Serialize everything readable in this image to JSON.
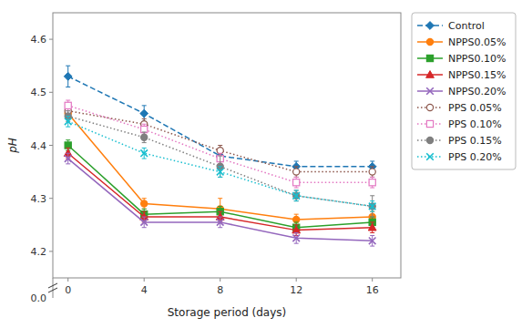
{
  "chart_data": {
    "type": "line",
    "x": [
      0,
      4,
      8,
      12,
      16
    ],
    "xlim": [
      -0.8,
      17.5
    ],
    "xticks": [
      0,
      4,
      8,
      12,
      16
    ],
    "ylim": [
      4.15,
      4.65
    ],
    "yticks": [
      4.2,
      4.3,
      4.4,
      4.5,
      4.6
    ],
    "xlabel": "Storage period (days)",
    "ylabel": "pH",
    "grid": false,
    "legend": "right",
    "annotations": [
      {
        "text": "0.0"
      }
    ],
    "series": [
      {
        "name": "Control",
        "marker": "diamond",
        "line_style": "dashed",
        "values": [
          4.53,
          4.46,
          4.38,
          4.36,
          4.36
        ],
        "errors": [
          0.02,
          0.015,
          0.01,
          0.01,
          0.01
        ]
      },
      {
        "name": "NPPS0.05%",
        "marker": "circle",
        "line_style": "solid",
        "values": [
          4.46,
          4.29,
          4.28,
          4.26,
          4.265
        ],
        "errors": [
          0.01,
          0.01,
          0.02,
          0.01,
          0.01
        ]
      },
      {
        "name": "NPPS0.10%",
        "marker": "square",
        "line_style": "solid",
        "values": [
          4.4,
          4.27,
          4.275,
          4.245,
          4.255
        ],
        "errors": [
          0.01,
          0.01,
          0.01,
          0.01,
          0.01
        ]
      },
      {
        "name": "NPPS0.15%",
        "marker": "triangle",
        "line_style": "solid",
        "values": [
          4.385,
          4.265,
          4.265,
          4.24,
          4.245
        ],
        "errors": [
          0.01,
          0.01,
          0.01,
          0.01,
          0.01
        ]
      },
      {
        "name": "NPPS0.20%",
        "marker": "x",
        "line_style": "solid",
        "values": [
          4.375,
          4.255,
          4.255,
          4.225,
          4.22
        ],
        "errors": [
          0.01,
          0.01,
          0.01,
          0.01,
          0.01
        ]
      },
      {
        "name": "PPS 0.05%",
        "marker": "circle-open",
        "line_style": "dotted",
        "values": [
          4.465,
          4.44,
          4.39,
          4.35,
          4.35
        ],
        "errors": [
          0.01,
          0.01,
          0.01,
          0.01,
          0.01
        ]
      },
      {
        "name": "PPS 0.10%",
        "marker": "square-open",
        "line_style": "dotted",
        "values": [
          4.475,
          4.43,
          4.375,
          4.33,
          4.33
        ],
        "errors": [
          0.01,
          0.01,
          0.01,
          0.01,
          0.01
        ]
      },
      {
        "name": "PPS 0.15%",
        "marker": "circle",
        "line_style": "dotted",
        "values": [
          4.455,
          4.415,
          4.36,
          4.305,
          4.285
        ],
        "errors": [
          0.01,
          0.01,
          0.02,
          0.01,
          0.02
        ]
      },
      {
        "name": "PPS 0.20%",
        "marker": "x",
        "line_style": "dotted",
        "values": [
          4.445,
          4.385,
          4.35,
          4.305,
          4.285
        ],
        "errors": [
          0.01,
          0.01,
          0.01,
          0.01,
          0.01
        ]
      }
    ]
  }
}
